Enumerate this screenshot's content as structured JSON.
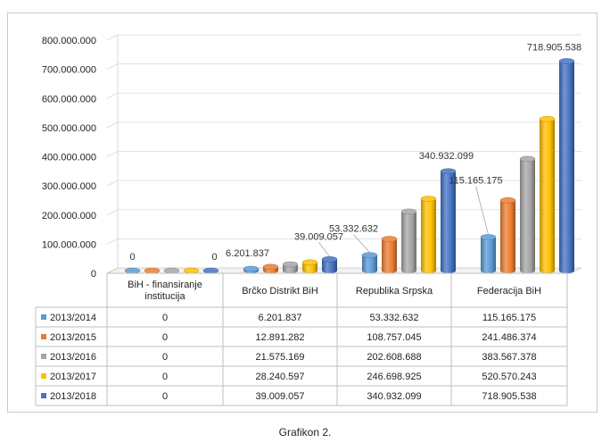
{
  "caption": "Grafikon 2.",
  "chart_data": {
    "type": "bar",
    "style": "3d-cylinder",
    "categories": [
      "BiH - finansiranje institucija",
      "Brčko Distrikt BiH",
      "Republika Srpska",
      "Federacija BiH"
    ],
    "series": [
      {
        "name": "2013/2014",
        "color": "#5b9bd5",
        "values": [
          0,
          6201837,
          53332632,
          115165175
        ],
        "value_labels": [
          "0",
          "6.201.837",
          "53.332.632",
          "115.165.175"
        ]
      },
      {
        "name": "2013/2015",
        "color": "#ed7d31",
        "values": [
          0,
          12891282,
          108757045,
          241486374
        ],
        "value_labels": [
          "0",
          "12.891.282",
          "108.757.045",
          "241.486.374"
        ]
      },
      {
        "name": "2013/2016",
        "color": "#a5a5a5",
        "values": [
          0,
          21575169,
          202608688,
          383567378
        ],
        "value_labels": [
          "0",
          "21.575.169",
          "202.608.688",
          "383.567.378"
        ]
      },
      {
        "name": "2013/2017",
        "color": "#ffc000",
        "values": [
          0,
          28240597,
          246698925,
          520570243
        ],
        "value_labels": [
          "0",
          "28.240.597",
          "246.698.925",
          "520.570.243"
        ]
      },
      {
        "name": "2013/2018",
        "color": "#4472c4",
        "values": [
          0,
          39009057,
          340932099,
          718905538
        ],
        "value_labels": [
          "0",
          "39.009.057",
          "340.932.099",
          "718.905.538"
        ]
      }
    ],
    "annotations": [
      {
        "category": 0,
        "series": 0,
        "text": "0"
      },
      {
        "category": 0,
        "series": 4,
        "text": "0"
      },
      {
        "category": 1,
        "series": 0,
        "text": "6.201.837"
      },
      {
        "category": 1,
        "series": 4,
        "text": "39.009.057"
      },
      {
        "category": 2,
        "series": 0,
        "text": "53.332.632"
      },
      {
        "category": 2,
        "series": 4,
        "text": "340.932.099"
      },
      {
        "category": 3,
        "series": 0,
        "text": "115.165.175"
      },
      {
        "category": 3,
        "series": 4,
        "text": "718.905.538"
      }
    ],
    "ylim": [
      0,
      800000000
    ],
    "ytick_values": [
      0,
      100000000,
      200000000,
      300000000,
      400000000,
      500000000,
      600000000,
      700000000,
      800000000
    ],
    "ytick_labels": [
      "0",
      "100.000.000",
      "200.000.000",
      "300.000.000",
      "400.000.000",
      "500.000.000",
      "600.000.000",
      "700.000.000",
      "800.000.000"
    ],
    "grid": true,
    "legend": "data table below chart"
  }
}
